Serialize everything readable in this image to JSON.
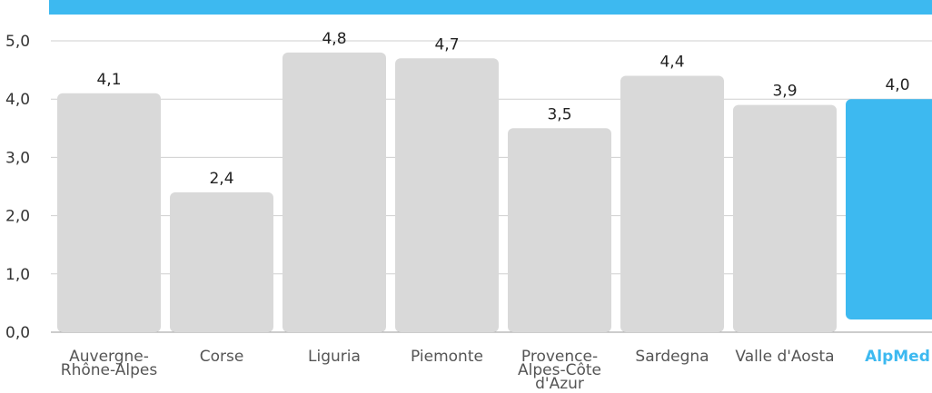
{
  "chart_data": {
    "type": "bar",
    "categories": [
      [
        "Auvergne-",
        "Rhône-Alpes"
      ],
      [
        "Corse"
      ],
      [
        "Liguria"
      ],
      [
        "Piemonte"
      ],
      [
        "Provence-",
        "Alpes-Côte",
        "d'Azur"
      ],
      [
        "Sardegna"
      ],
      [
        "Valle d'Aosta"
      ],
      [
        "AlpMed"
      ]
    ],
    "values": [
      4.1,
      2.4,
      4.8,
      4.7,
      3.5,
      4.4,
      3.9,
      4.0
    ],
    "value_labels": [
      "4,1",
      "2,4",
      "4,8",
      "4,7",
      "3,5",
      "4,4",
      "3,9",
      "4,0"
    ],
    "y_ticks": [
      "0,0",
      "1,0",
      "2,0",
      "3,0",
      "4,0",
      "5,0"
    ],
    "ylim": [
      0,
      5
    ],
    "grid": true,
    "highlight_index": 7,
    "colors": {
      "bar": "#d9d9d9",
      "highlight": "#3db9f0",
      "grid": "#cfcfcf",
      "axis": "#999999",
      "tick_text": "#333333",
      "label_text": "#555555",
      "highlight_text": "#3db9f0"
    }
  }
}
